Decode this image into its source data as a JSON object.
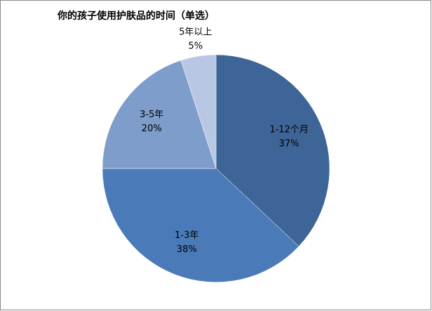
{
  "chart_data": {
    "type": "pie",
    "title": "你的孩子使用护肤品的时间（单选）",
    "categories": [
      "1-12个月",
      "1-3年",
      "3-5年",
      "5年以上"
    ],
    "values": [
      37,
      38,
      20,
      5
    ],
    "value_labels": [
      "37%",
      "38%",
      "20%",
      "5%"
    ],
    "colors": [
      "#3e6597",
      "#4a7bb8",
      "#7f9dca",
      "#b8c7e3"
    ]
  }
}
